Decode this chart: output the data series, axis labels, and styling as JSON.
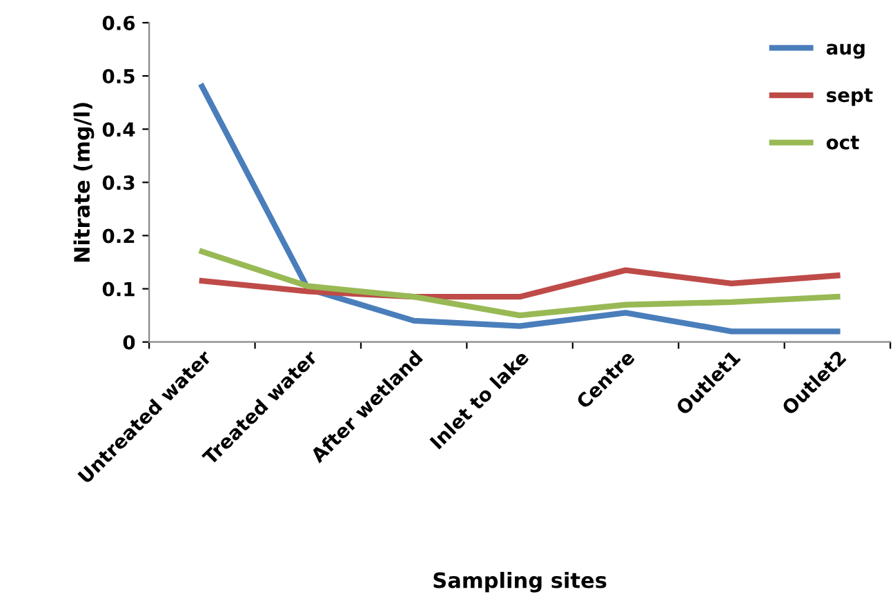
{
  "chart_data": {
    "type": "line",
    "xlabel": "Sampling sites",
    "ylabel": "Nitrate (mg/l)",
    "categories": [
      "Untreated water",
      "Treated water",
      "After wetland",
      "Inlet to lake",
      "Centre",
      "Outlet1",
      "Outlet2"
    ],
    "series": [
      {
        "name": "aug",
        "color": "#4a7ebb",
        "values": [
          0.48,
          0.1,
          0.04,
          0.03,
          0.055,
          0.02,
          0.02
        ]
      },
      {
        "name": "sept",
        "color": "#be4b48",
        "values": [
          0.115,
          0.095,
          0.085,
          0.085,
          0.135,
          0.11,
          0.125
        ]
      },
      {
        "name": "oct",
        "color": "#98b954",
        "values": [
          0.17,
          0.105,
          0.085,
          0.05,
          0.07,
          0.075,
          0.085
        ]
      }
    ],
    "ylim": [
      0,
      0.6
    ],
    "yticks": [
      {
        "value": 0,
        "label": "0"
      },
      0.1,
      0.2,
      0.3,
      0.4,
      0.5,
      0.6
    ],
    "grid": false,
    "legend": "top right",
    "marker": "none",
    "line_style": "solid"
  }
}
